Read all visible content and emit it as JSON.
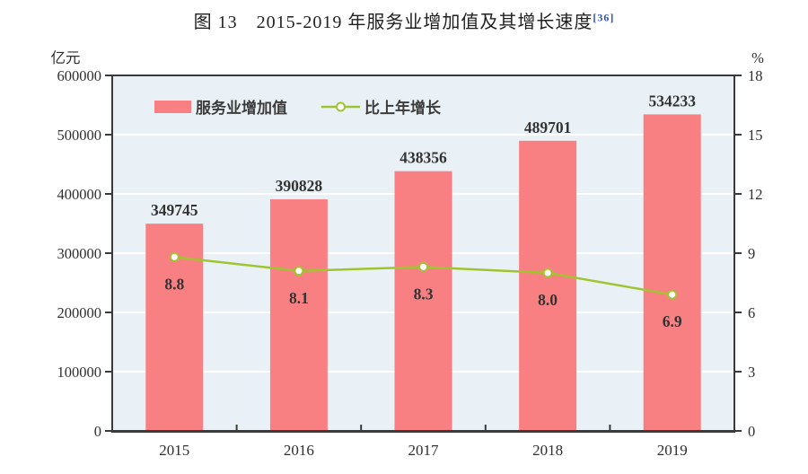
{
  "title": {
    "text": "图 13　2015-2019 年服务业增加值及其增长速度",
    "footnote": "[36]"
  },
  "chart_data": {
    "type": "bar+line",
    "categories": [
      "2015",
      "2016",
      "2017",
      "2018",
      "2019"
    ],
    "series": [
      {
        "name": "服务业增加值",
        "type": "bar",
        "axis": "left",
        "values": [
          349745,
          390828,
          438356,
          489701,
          534233
        ]
      },
      {
        "name": "比上年增长",
        "type": "line",
        "axis": "right",
        "values": [
          8.8,
          8.1,
          8.3,
          8.0,
          6.9
        ]
      }
    ],
    "left_axis": {
      "unit": "亿元",
      "min": 0,
      "max": 600000,
      "step": 100000,
      "ticks": [
        "600000",
        "500000",
        "400000",
        "300000",
        "200000",
        "100000",
        "0"
      ]
    },
    "right_axis": {
      "unit": "%",
      "min": 0,
      "max": 18,
      "step": 3,
      "ticks": [
        "18",
        "15",
        "12",
        "9",
        "6",
        "3",
        "0"
      ]
    },
    "legend_position": "top-left-inside",
    "grid": true,
    "colors": {
      "bar": "#F98082",
      "line": "#A0C430",
      "marker_fill": "#FFFFFF",
      "plot_bg": "#E9F1F6",
      "grid": "#FFFFFF",
      "border": "#3A3A3A",
      "text": "#2F2F2F",
      "label": "#333333",
      "legend_text": "#3C3C3C",
      "footnote": "#2D52C4"
    }
  }
}
